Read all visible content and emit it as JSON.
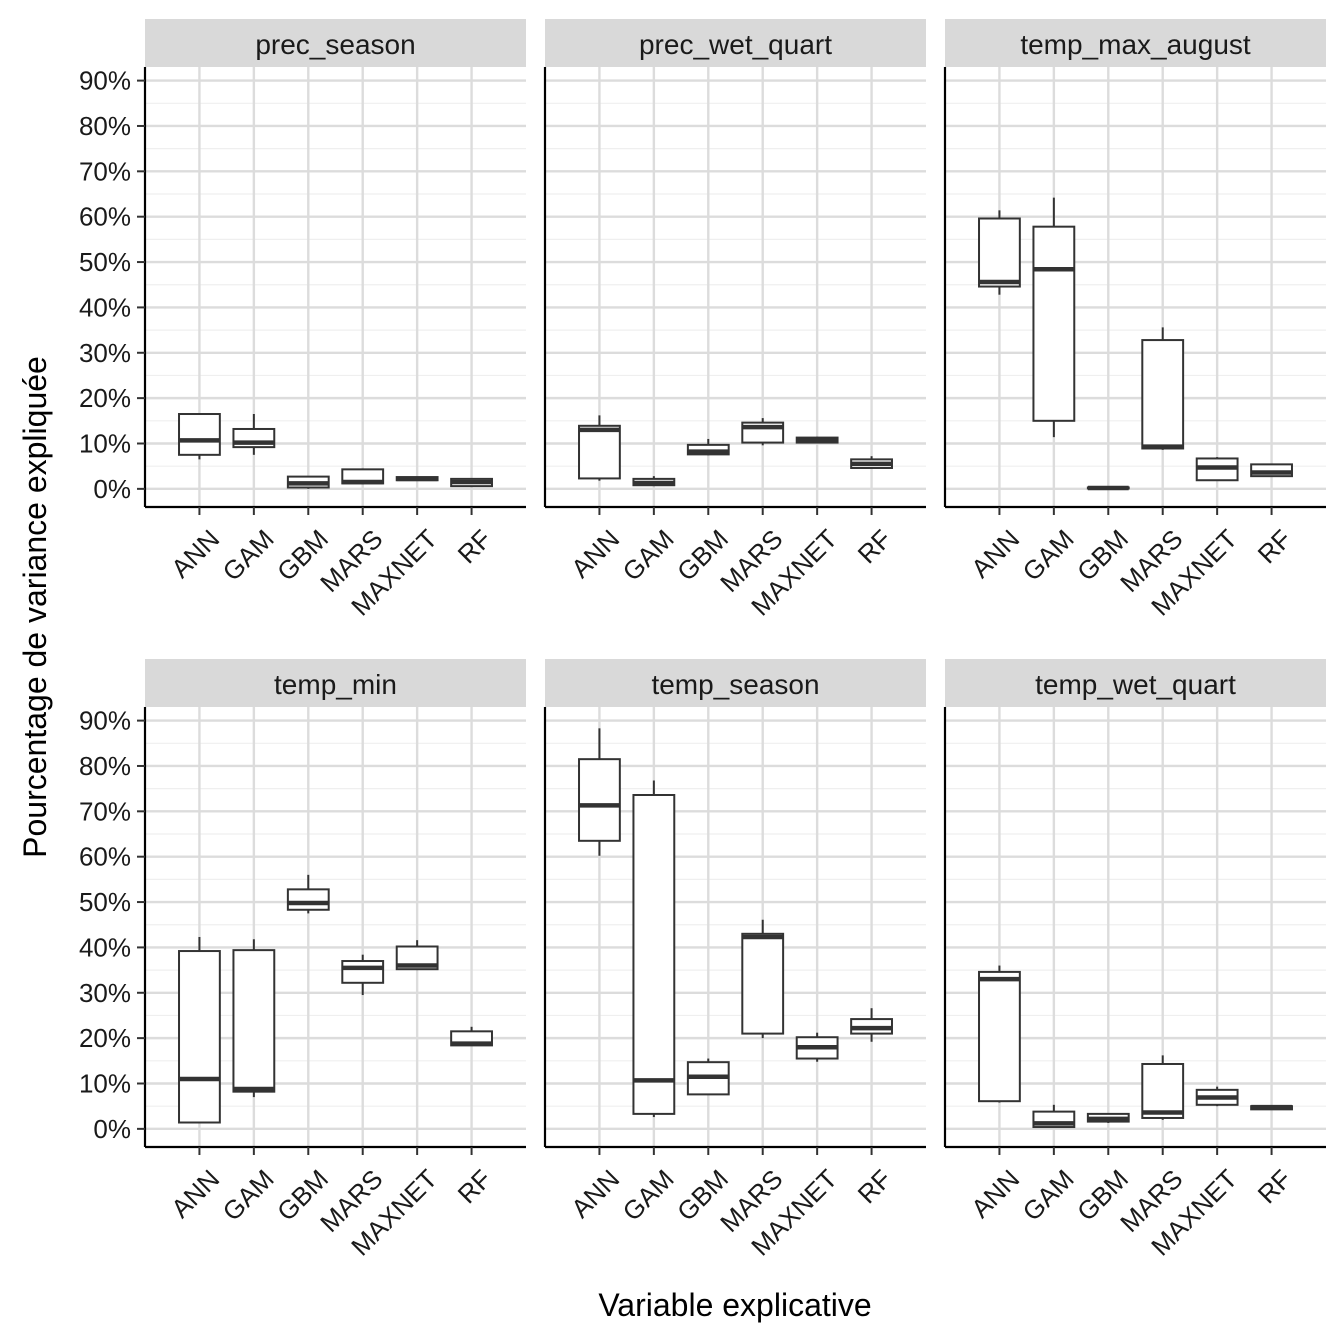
{
  "chart_data": {
    "type": "boxplot",
    "xlabel": "Variable explicative",
    "ylabel": "Pourcentage de variance expliquée",
    "ylim": [
      -4,
      93
    ],
    "y_ticks": [
      0,
      10,
      20,
      30,
      40,
      50,
      60,
      70,
      80,
      90
    ],
    "y_tick_suffix": "%",
    "grid": true,
    "categories": [
      "ANN",
      "GAM",
      "GBM",
      "MARS",
      "MAXNET",
      "RF"
    ],
    "facets": [
      {
        "title": "prec_season",
        "boxes": [
          {
            "min": 6.5,
            "q1": 7.5,
            "median": 10.7,
            "q3": 16.5,
            "max": 16.5
          },
          {
            "min": 7.5,
            "q1": 9.2,
            "median": 10.2,
            "q3": 13.2,
            "max": 16.5
          },
          {
            "min": 0.0,
            "q1": 0.3,
            "median": 1.2,
            "q3": 2.7,
            "max": 2.7
          },
          {
            "min": 1.0,
            "q1": 1.2,
            "median": 1.5,
            "q3": 4.3,
            "max": 4.5
          },
          {
            "min": 1.8,
            "q1": 1.9,
            "median": 2.2,
            "q3": 2.6,
            "max": 2.6
          },
          {
            "min": 0.4,
            "q1": 0.6,
            "median": 1.5,
            "q3": 2.2,
            "max": 2.2
          }
        ]
      },
      {
        "title": "prec_wet_quart",
        "boxes": [
          {
            "min": 1.8,
            "q1": 2.3,
            "median": 13.0,
            "q3": 13.9,
            "max": 16.2
          },
          {
            "min": 0.6,
            "q1": 0.8,
            "median": 1.3,
            "q3": 2.2,
            "max": 2.8
          },
          {
            "min": 7.4,
            "q1": 7.6,
            "median": 8.2,
            "q3": 9.7,
            "max": 11.0
          },
          {
            "min": 9.6,
            "q1": 10.2,
            "median": 13.6,
            "q3": 14.6,
            "max": 15.6
          },
          {
            "min": 10.0,
            "q1": 10.2,
            "median": 10.7,
            "q3": 11.3,
            "max": 11.5
          },
          {
            "min": 4.5,
            "q1": 4.6,
            "median": 5.5,
            "q3": 6.5,
            "max": 7.2
          }
        ]
      },
      {
        "title": "temp_max_august",
        "boxes": [
          {
            "min": 42.8,
            "q1": 44.6,
            "median": 45.6,
            "q3": 59.6,
            "max": 61.4
          },
          {
            "min": 11.4,
            "q1": 15.0,
            "median": 48.4,
            "q3": 57.8,
            "max": 64.2
          },
          {
            "min": 0.0,
            "q1": 0.1,
            "median": 0.2,
            "q3": 0.3,
            "max": 0.4
          },
          {
            "min": 8.6,
            "q1": 8.9,
            "median": 9.3,
            "q3": 32.8,
            "max": 35.6
          },
          {
            "min": 1.8,
            "q1": 1.9,
            "median": 4.7,
            "q3": 6.7,
            "max": 7.0
          },
          {
            "min": 2.7,
            "q1": 2.8,
            "median": 3.6,
            "q3": 5.4,
            "max": 5.4
          }
        ]
      },
      {
        "title": "temp_min",
        "boxes": [
          {
            "min": 1.2,
            "q1": 1.4,
            "median": 11.0,
            "q3": 39.2,
            "max": 42.3
          },
          {
            "min": 7.0,
            "q1": 8.2,
            "median": 8.8,
            "q3": 39.4,
            "max": 41.8
          },
          {
            "min": 47.5,
            "q1": 48.3,
            "median": 49.8,
            "q3": 52.8,
            "max": 56.0
          },
          {
            "min": 29.5,
            "q1": 32.2,
            "median": 35.5,
            "q3": 37.0,
            "max": 38.4
          },
          {
            "min": 35.0,
            "q1": 35.2,
            "median": 36.0,
            "q3": 40.2,
            "max": 41.6
          },
          {
            "min": 18.3,
            "q1": 18.4,
            "median": 18.8,
            "q3": 21.5,
            "max": 22.5
          }
        ]
      },
      {
        "title": "temp_season",
        "boxes": [
          {
            "min": 60.2,
            "q1": 63.5,
            "median": 71.3,
            "q3": 81.5,
            "max": 88.3
          },
          {
            "min": 2.6,
            "q1": 3.3,
            "median": 10.7,
            "q3": 73.6,
            "max": 76.8
          },
          {
            "min": 7.5,
            "q1": 7.6,
            "median": 11.5,
            "q3": 14.7,
            "max": 15.5
          },
          {
            "min": 20.0,
            "q1": 21.0,
            "median": 42.3,
            "q3": 43.0,
            "max": 46.1
          },
          {
            "min": 14.8,
            "q1": 15.5,
            "median": 18.0,
            "q3": 20.2,
            "max": 21.2
          },
          {
            "min": 19.2,
            "q1": 21.0,
            "median": 22.2,
            "q3": 24.2,
            "max": 26.6
          }
        ]
      },
      {
        "title": "temp_wet_quart",
        "boxes": [
          {
            "min": 5.8,
            "q1": 6.1,
            "median": 33.0,
            "q3": 34.6,
            "max": 36.0
          },
          {
            "min": 0.2,
            "q1": 0.4,
            "median": 1.2,
            "q3": 3.8,
            "max": 5.3
          },
          {
            "min": 1.3,
            "q1": 1.6,
            "median": 2.2,
            "q3": 3.3,
            "max": 3.3
          },
          {
            "min": 2.0,
            "q1": 2.4,
            "median": 3.6,
            "q3": 14.3,
            "max": 16.2
          },
          {
            "min": 5.0,
            "q1": 5.3,
            "median": 6.9,
            "q3": 8.6,
            "max": 9.3
          },
          {
            "min": 4.2,
            "q1": 4.3,
            "median": 4.8,
            "q3": 5.0,
            "max": 5.2
          }
        ]
      }
    ]
  }
}
